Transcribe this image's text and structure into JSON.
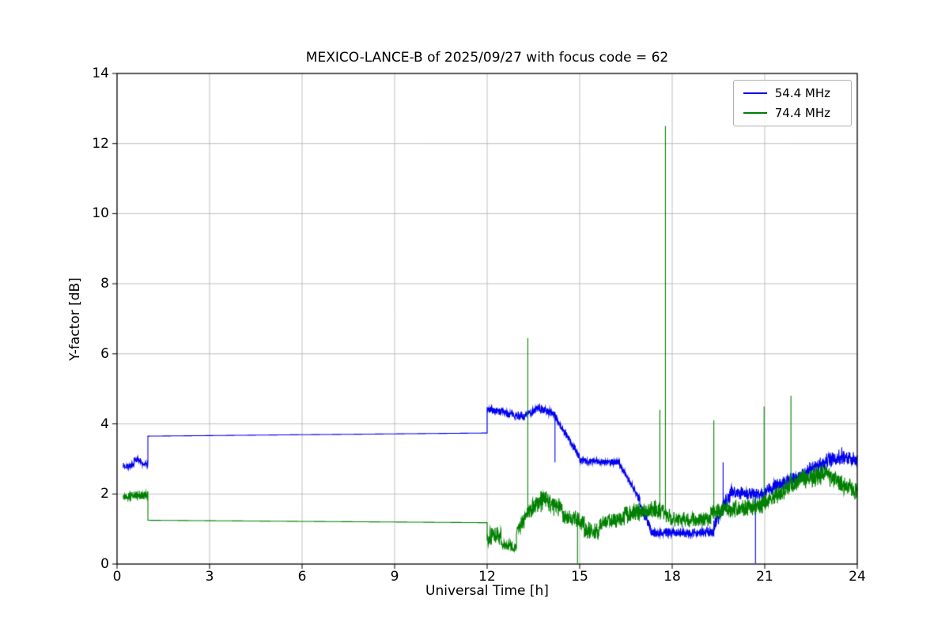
{
  "chart_data": {
    "type": "line",
    "title": "MEXICO-LANCE-B of 2025/09/27 with focus code = 62",
    "xlabel": "Universal Time [h]",
    "ylabel": "Y-factor [dB]",
    "xlim": [
      0,
      24
    ],
    "ylim": [
      0,
      14
    ],
    "xticks": [
      0,
      3,
      6,
      9,
      12,
      15,
      18,
      21,
      24
    ],
    "yticks": [
      0,
      2,
      4,
      6,
      8,
      10,
      12,
      14
    ],
    "grid": true,
    "grid_color": "#b0b0b0",
    "legend_position": "upper right",
    "segment_format": "[x_start_h, x_end_h, y_start_dB, y_end_dB, noise_amplitude_dB]",
    "spike_format": "[x_h, peak_value_dB]",
    "series": [
      {
        "name": "54.4 MHz",
        "color": "#0000ee",
        "seed": 7,
        "segments": [
          [
            0.2,
            0.55,
            2.8,
            2.8,
            0.1
          ],
          [
            0.55,
            0.78,
            2.97,
            2.97,
            0.09
          ],
          [
            0.78,
            1.0,
            2.85,
            2.85,
            0.08
          ],
          [
            1.0,
            12.0,
            3.65,
            3.74,
            0
          ],
          [
            12.0,
            12.6,
            4.4,
            4.35,
            0.12
          ],
          [
            12.6,
            13.25,
            4.3,
            4.2,
            0.13
          ],
          [
            13.25,
            13.65,
            4.25,
            4.45,
            0.14
          ],
          [
            13.65,
            14.15,
            4.45,
            4.3,
            0.14
          ],
          [
            14.15,
            15.0,
            4.3,
            3.05,
            0.12
          ],
          [
            15.0,
            16.3,
            2.95,
            2.9,
            0.11
          ],
          [
            16.3,
            16.95,
            2.85,
            1.85,
            0.12
          ],
          [
            16.95,
            17.3,
            1.7,
            1.0,
            0.18
          ],
          [
            17.3,
            19.35,
            0.9,
            0.9,
            0.15
          ],
          [
            19.35,
            19.95,
            1.1,
            2.1,
            0.25
          ],
          [
            19.95,
            21.0,
            2.05,
            2.0,
            0.2
          ],
          [
            21.0,
            22.4,
            2.1,
            2.6,
            0.25
          ],
          [
            22.4,
            23.5,
            2.7,
            3.1,
            0.25
          ],
          [
            23.5,
            24.0,
            3.05,
            3.0,
            0.22
          ]
        ],
        "spikes": [
          [
            14.2,
            2.9
          ],
          [
            19.65,
            2.9
          ],
          [
            20.7,
            0.02
          ]
        ]
      },
      {
        "name": "74.4 MHz",
        "color": "#008000",
        "seed": 13,
        "segments": [
          [
            0.2,
            1.0,
            1.95,
            1.95,
            0.15
          ],
          [
            1.0,
            12.0,
            1.25,
            1.18,
            0
          ],
          [
            12.0,
            12.45,
            0.75,
            0.85,
            0.3
          ],
          [
            12.45,
            12.95,
            0.55,
            0.5,
            0.2
          ],
          [
            12.95,
            13.3,
            0.9,
            1.4,
            0.25
          ],
          [
            13.3,
            13.9,
            1.5,
            1.85,
            0.35
          ],
          [
            13.9,
            14.45,
            1.85,
            1.5,
            0.35
          ],
          [
            14.45,
            15.15,
            1.35,
            1.2,
            0.3
          ],
          [
            15.15,
            15.65,
            0.95,
            0.9,
            0.3
          ],
          [
            15.65,
            16.45,
            1.2,
            1.3,
            0.25
          ],
          [
            16.45,
            17.55,
            1.4,
            1.6,
            0.3
          ],
          [
            17.55,
            17.95,
            1.55,
            1.35,
            0.3
          ],
          [
            17.95,
            19.25,
            1.25,
            1.25,
            0.25
          ],
          [
            19.25,
            20.9,
            1.5,
            1.65,
            0.3
          ],
          [
            20.9,
            21.8,
            1.7,
            2.2,
            0.3
          ],
          [
            21.8,
            23.1,
            2.3,
            2.6,
            0.35
          ],
          [
            23.1,
            24.0,
            2.5,
            2.05,
            0.3
          ]
        ],
        "spikes": [
          [
            13.32,
            6.45
          ],
          [
            14.93,
            0.02
          ],
          [
            17.6,
            4.4
          ],
          [
            17.78,
            12.5
          ],
          [
            19.35,
            4.1
          ],
          [
            20.98,
            4.5
          ],
          [
            21.85,
            4.8
          ]
        ]
      }
    ]
  }
}
